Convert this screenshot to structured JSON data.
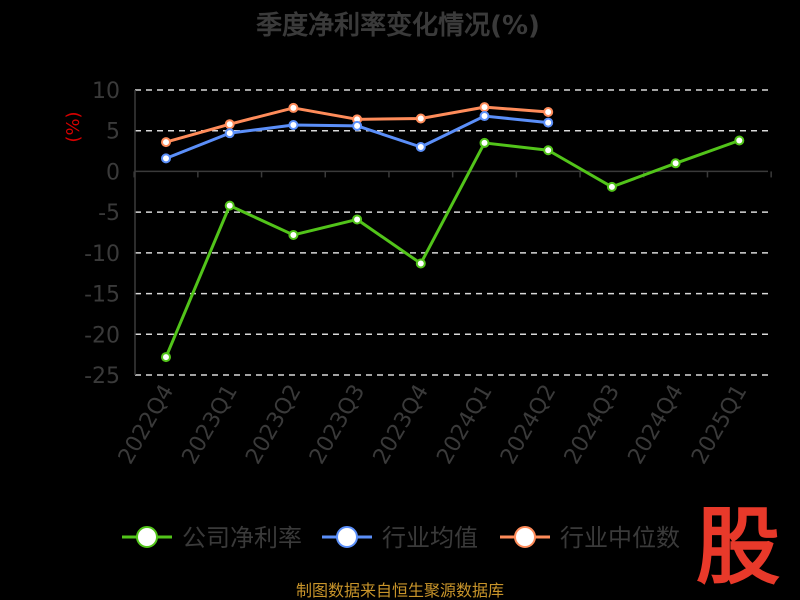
{
  "chart_data": {
    "type": "line",
    "title": "季度净利率变化情况(%)",
    "ylabel": "(%)",
    "categories": [
      "2022Q4",
      "2023Q1",
      "2023Q2",
      "2023Q3",
      "2023Q4",
      "2024Q1",
      "2024Q2",
      "2024Q3",
      "2024Q4",
      "2025Q1"
    ],
    "yticks": [
      10,
      5,
      0,
      -5,
      -10,
      -15,
      -20,
      -25
    ],
    "ylim": [
      -25,
      10
    ],
    "grid": true,
    "legend_position": "bottom",
    "series": [
      {
        "name": "公司净利率",
        "color": "#52c41a",
        "values": [
          -22.8,
          -4.2,
          -7.8,
          -5.9,
          -11.3,
          3.5,
          2.6,
          -1.9,
          1.0,
          3.8
        ]
      },
      {
        "name": "行业均值",
        "color": "#5b8ff9",
        "values": [
          1.6,
          4.7,
          5.7,
          5.6,
          3.0,
          6.8,
          6.0,
          null,
          null,
          null
        ]
      },
      {
        "name": "行业中位数",
        "color": "#ff8c5a",
        "values": [
          3.6,
          5.8,
          7.8,
          6.4,
          6.5,
          7.9,
          7.3,
          null,
          null,
          null
        ]
      }
    ]
  },
  "source": "制图数据来自恒生聚源数据库",
  "logo": "股"
}
